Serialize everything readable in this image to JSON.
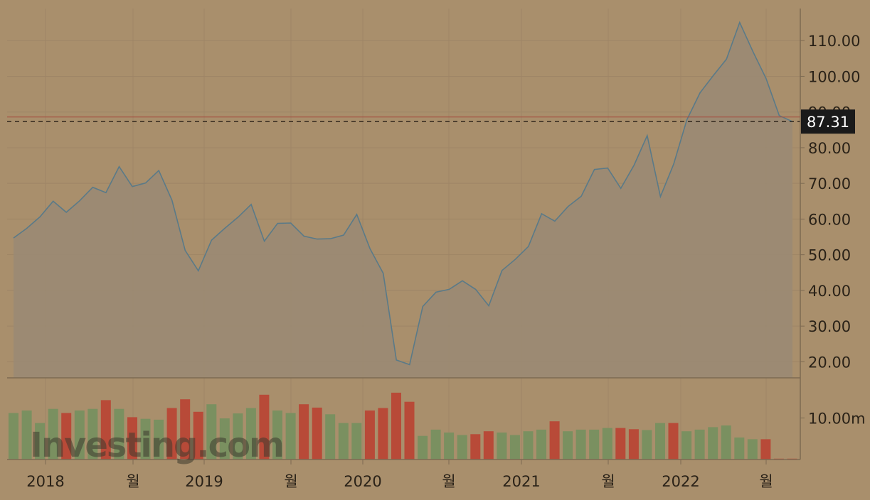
{
  "chart_data": {
    "type": "area",
    "title": "",
    "x_axis": {
      "labels": [
        "2018",
        "월",
        "2019",
        "월",
        "2020",
        "월",
        "2021",
        "월",
        "2022",
        "월"
      ]
    },
    "y_axis": {
      "ticks": [
        "20.00",
        "30.00",
        "40.00",
        "50.00",
        "60.00",
        "70.00",
        "80.00",
        "90.00",
        "100.00",
        "110.00"
      ],
      "ylim": [
        15.5,
        119
      ]
    },
    "price": [
      54.7,
      57.4,
      60.6,
      65.0,
      61.9,
      65.1,
      68.9,
      67.4,
      74.7,
      69.1,
      70.1,
      73.6,
      65.3,
      51.2,
      45.5,
      54.1,
      57.4,
      60.5,
      64.1,
      53.8,
      58.8,
      58.9,
      55.2,
      54.4,
      54.5,
      55.5,
      61.3,
      51.7,
      44.8,
      20.5,
      19.2,
      35.5,
      39.5,
      40.3,
      42.7,
      40.3,
      35.7,
      45.6,
      48.7,
      52.3,
      61.5,
      59.4,
      63.5,
      66.4,
      73.9,
      74.3,
      68.6,
      75.1,
      83.4,
      66.3,
      75.4,
      87.8,
      95.4,
      100.2,
      104.8,
      115.1,
      107.0,
      99.4,
      89.0,
      87.31
    ],
    "volume_axis": {
      "ticks": [
        "10.00m"
      ]
    },
    "volume": [
      {
        "v": 11.2,
        "d": "up"
      },
      {
        "v": 11.8,
        "d": "up"
      },
      {
        "v": 8.8,
        "d": "up"
      },
      {
        "v": 12.2,
        "d": "up"
      },
      {
        "v": 11.2,
        "d": "down"
      },
      {
        "v": 11.8,
        "d": "up"
      },
      {
        "v": 12.2,
        "d": "up"
      },
      {
        "v": 14.3,
        "d": "down"
      },
      {
        "v": 12.2,
        "d": "up"
      },
      {
        "v": 10.2,
        "d": "down"
      },
      {
        "v": 9.8,
        "d": "up"
      },
      {
        "v": 9.6,
        "d": "up"
      },
      {
        "v": 12.4,
        "d": "down"
      },
      {
        "v": 14.5,
        "d": "down"
      },
      {
        "v": 11.5,
        "d": "down"
      },
      {
        "v": 13.3,
        "d": "up"
      },
      {
        "v": 9.9,
        "d": "up"
      },
      {
        "v": 11.1,
        "d": "up"
      },
      {
        "v": 12.4,
        "d": "up"
      },
      {
        "v": 15.6,
        "d": "down"
      },
      {
        "v": 11.8,
        "d": "up"
      },
      {
        "v": 11.2,
        "d": "up"
      },
      {
        "v": 13.3,
        "d": "down"
      },
      {
        "v": 12.5,
        "d": "down"
      },
      {
        "v": 10.9,
        "d": "up"
      },
      {
        "v": 8.8,
        "d": "up"
      },
      {
        "v": 8.8,
        "d": "up"
      },
      {
        "v": 11.8,
        "d": "down"
      },
      {
        "v": 12.4,
        "d": "down"
      },
      {
        "v": 16.1,
        "d": "down"
      },
      {
        "v": 13.9,
        "d": "down"
      },
      {
        "v": 5.7,
        "d": "up"
      },
      {
        "v": 7.2,
        "d": "up"
      },
      {
        "v": 6.5,
        "d": "up"
      },
      {
        "v": 5.9,
        "d": "up"
      },
      {
        "v": 6.1,
        "d": "down"
      },
      {
        "v": 6.8,
        "d": "down"
      },
      {
        "v": 6.5,
        "d": "up"
      },
      {
        "v": 5.9,
        "d": "up"
      },
      {
        "v": 6.8,
        "d": "up"
      },
      {
        "v": 7.2,
        "d": "up"
      },
      {
        "v": 9.2,
        "d": "down"
      },
      {
        "v": 6.8,
        "d": "up"
      },
      {
        "v": 7.2,
        "d": "up"
      },
      {
        "v": 7.2,
        "d": "up"
      },
      {
        "v": 7.6,
        "d": "up"
      },
      {
        "v": 7.6,
        "d": "down"
      },
      {
        "v": 7.3,
        "d": "down"
      },
      {
        "v": 7.1,
        "d": "up"
      },
      {
        "v": 8.8,
        "d": "up"
      },
      {
        "v": 8.8,
        "d": "down"
      },
      {
        "v": 6.8,
        "d": "up"
      },
      {
        "v": 7.2,
        "d": "up"
      },
      {
        "v": 7.8,
        "d": "up"
      },
      {
        "v": 8.2,
        "d": "up"
      },
      {
        "v": 5.3,
        "d": "up"
      },
      {
        "v": 4.9,
        "d": "up"
      },
      {
        "v": 4.9,
        "d": "down"
      },
      {
        "v": 0.2,
        "d": "down"
      },
      {
        "v": 0.2,
        "d": "down"
      }
    ],
    "current_price_label": "87.31",
    "reference_level": 88.6,
    "grid": true,
    "colors": {
      "background": "#a98f6c",
      "line": "#5a7a88",
      "area": "#9a8a74",
      "up": "#7a9060",
      "down": "#b84a38",
      "reference": "#a64a3c",
      "current_label_bg": "#1a1a1a",
      "current_label_fg": "#ffffff",
      "text": "#2a2218"
    },
    "watermark": "Investing.com"
  }
}
